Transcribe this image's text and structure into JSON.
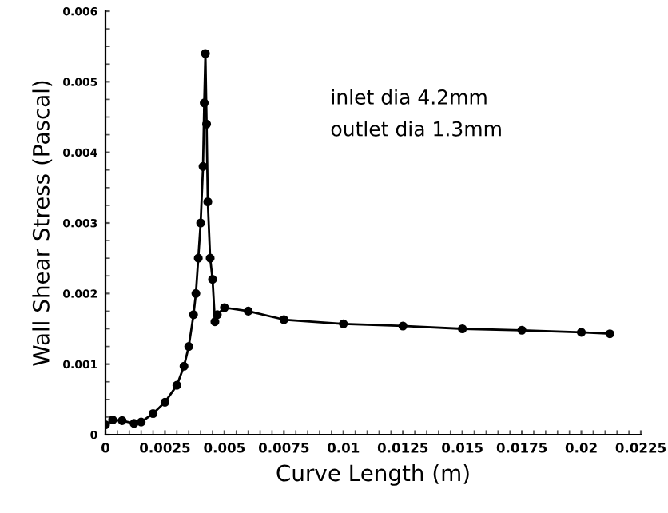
{
  "chart_data": {
    "type": "line",
    "xlabel": "Curve Length (m)",
    "ylabel": "Wall Shear Stress (Pascal)",
    "annotations": [
      "inlet dia 4.2mm",
      "outlet dia 1.3mm"
    ],
    "x": [
      0,
      0.0003,
      0.0007,
      0.0012,
      0.0015,
      0.002,
      0.0025,
      0.003,
      0.0033,
      0.0035,
      0.0037,
      0.0038,
      0.0039,
      0.004,
      0.0041,
      0.00415,
      0.0042,
      0.00425,
      0.0043,
      0.0044,
      0.0045,
      0.0046,
      0.0047,
      0.005,
      0.006,
      0.0075,
      0.01,
      0.0125,
      0.015,
      0.0175,
      0.02,
      0.0212
    ],
    "series": [
      {
        "color": "#000000",
        "values": [
          0.00014,
          0.00021,
          0.0002,
          0.00016,
          0.00018,
          0.0003,
          0.00046,
          0.0007,
          0.00097,
          0.00125,
          0.0017,
          0.002,
          0.0025,
          0.003,
          0.0038,
          0.0047,
          0.0054,
          0.0044,
          0.0033,
          0.0025,
          0.0022,
          0.0016,
          0.0017,
          0.0018,
          0.00175,
          0.00163,
          0.00157,
          0.00154,
          0.0015,
          0.00148,
          0.00145,
          0.00143
        ]
      }
    ],
    "xlim": [
      0,
      0.0225
    ],
    "ylim": [
      0,
      0.006
    ],
    "xticks": [
      0,
      0.0025,
      0.005,
      0.0075,
      0.01,
      0.0125,
      0.015,
      0.0175,
      0.02,
      0.0225
    ],
    "yticks": [
      0,
      0.001,
      0.002,
      0.003,
      0.004,
      0.005,
      0.006
    ],
    "marker": "circle",
    "line_style": "solid",
    "grid": false,
    "legend": false
  }
}
